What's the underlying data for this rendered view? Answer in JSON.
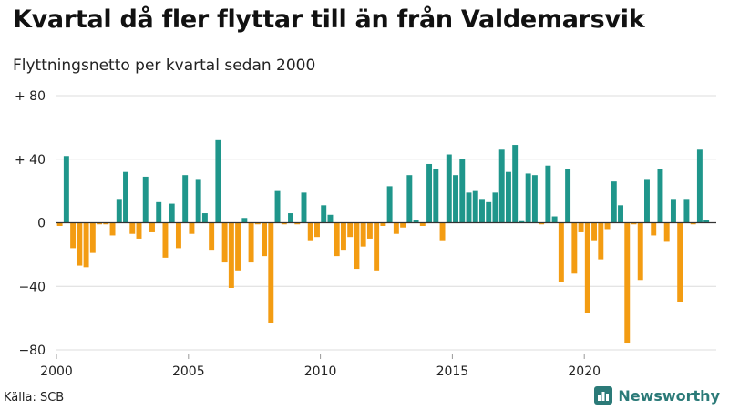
{
  "header": {
    "title": "Kvartal då fler flyttar till än från Valdemarsvik",
    "subtitle": "Flyttningsnetto per kvartal sedan 2000"
  },
  "footer": {
    "source": "Källa: SCB",
    "brand": "Newsworthy"
  },
  "colors": {
    "positive": "#1f968b",
    "negative": "#f39c12",
    "grid": "#dcdcdc",
    "brand": "#2b7a78"
  },
  "icons": {
    "brand": "bar-chart-icon"
  },
  "chart_data": {
    "type": "bar",
    "title": "Kvartal då fler flyttar till än från Valdemarsvik",
    "subtitle": "Flyttningsnetto per kvartal sedan 2000",
    "xlabel": "",
    "ylabel": "",
    "ylim": [
      -80,
      80
    ],
    "yticks": [
      80,
      40,
      0,
      -40,
      -80
    ],
    "ytick_labels": [
      "+ 80",
      "+ 40",
      "0",
      "−40",
      "−80"
    ],
    "xlim": [
      2000,
      2025
    ],
    "xticks": [
      2000,
      2005,
      2010,
      2015,
      2020
    ],
    "xtick_labels": [
      "2000",
      "2005",
      "2010",
      "2015",
      "2020"
    ],
    "grid": true,
    "start_year": 2000,
    "periods_per_year": 4,
    "values": [
      -2,
      42,
      -16,
      -27,
      -28,
      -19,
      -1,
      -1,
      -8,
      15,
      32,
      -7,
      -10,
      29,
      -6,
      13,
      -22,
      12,
      -16,
      30,
      -7,
      27,
      6,
      -17,
      52,
      -25,
      -41,
      -30,
      3,
      -25,
      -1,
      -21,
      -63,
      20,
      -1,
      6,
      -1,
      19,
      -11,
      -9,
      11,
      5,
      -21,
      -17,
      -9,
      -29,
      -15,
      -10,
      -30,
      -2,
      23,
      -7,
      -3,
      30,
      2,
      -2,
      37,
      34,
      -11,
      43,
      30,
      40,
      19,
      20,
      15,
      13,
      19,
      46,
      32,
      49,
      1,
      31,
      30,
      -1,
      36,
      4,
      -37,
      34,
      -32,
      -6,
      -57,
      -11,
      -23,
      -4,
      26,
      11,
      -76,
      -1,
      -36,
      27,
      -8,
      34,
      -12,
      15,
      -50,
      15,
      -1,
      46,
      2
    ]
  }
}
